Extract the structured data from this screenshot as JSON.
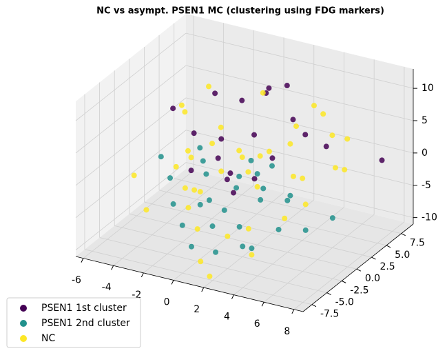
{
  "chart_data": {
    "type": "scatter3d",
    "title": "NC vs asympt. PSEN1 MC (clustering using FDG markers)",
    "xlim": [
      -6.5,
      8.6
    ],
    "ylim": [
      -9,
      9.5
    ],
    "zlim": [
      -11,
      13
    ],
    "xticks": [
      -6,
      -4,
      -2,
      0,
      2,
      4,
      6,
      8
    ],
    "yticks": [
      -7.5,
      {
        "value": -5,
        "label": "-5.0"
      },
      -2.5,
      {
        "value": 0,
        "label": "0.0"
      },
      2.5,
      {
        "value": 5,
        "label": "5.0"
      },
      7.5
    ],
    "zticks": [
      -10,
      -5,
      0,
      5,
      10
    ],
    "grid": true,
    "legend": "lower left",
    "series": [
      {
        "name": "PSEN1 1st cluster",
        "color": "#440154",
        "x": [
          -2,
          -1,
          0,
          1,
          2,
          3,
          -3,
          4,
          1,
          -1,
          2,
          0,
          3,
          -2,
          5,
          8.3,
          1,
          -4,
          2,
          0
        ],
        "y": [
          3,
          5,
          -1,
          4,
          6,
          0,
          2,
          3,
          -2,
          1,
          5,
          7,
          -3,
          -1,
          4,
          5,
          2,
          1,
          -4,
          0
        ],
        "z": [
          8,
          6,
          5,
          9,
          4,
          3,
          2,
          5,
          1,
          0,
          10,
          7,
          2,
          -1,
          3,
          2,
          4,
          6,
          0,
          -2
        ]
      },
      {
        "name": "PSEN1 2nd cluster",
        "color": "#21918c",
        "x": [
          -3,
          -2,
          -1,
          0,
          1,
          2,
          3,
          4,
          5,
          -2,
          0,
          1,
          3,
          4,
          2,
          -1,
          0,
          1,
          2,
          6,
          7,
          -3,
          -4,
          0,
          2,
          1,
          3,
          -1
        ],
        "y": [
          -2,
          -4,
          -1,
          -3,
          -5,
          0,
          -2,
          -6,
          -4,
          1,
          2,
          -1,
          3,
          0,
          -7,
          -5,
          4,
          -3,
          1,
          -2,
          0,
          3,
          -1,
          -6,
          -3,
          5,
          -5,
          -2
        ],
        "z": [
          -2,
          -4,
          -1,
          -3,
          -5,
          0,
          -2,
          -6,
          -4,
          -1,
          -3,
          -2,
          -5,
          -3,
          -7,
          -6,
          -2,
          -4,
          -3,
          -5,
          -4,
          -1,
          0,
          -8,
          -6,
          -3,
          -7,
          -5
        ]
      },
      {
        "name": "NC",
        "color": "#fde725",
        "x": [
          -5,
          -4,
          -3,
          -2,
          -1,
          0,
          1,
          2,
          3,
          4,
          5,
          6,
          -5,
          -3,
          -1,
          1,
          3,
          5,
          7,
          -4,
          -2,
          0,
          2,
          4,
          6,
          -3,
          -1,
          1,
          3,
          5,
          0,
          2,
          -2,
          4,
          1,
          -1,
          3,
          6,
          0,
          2
        ],
        "y": [
          5,
          3,
          1,
          -1,
          -3,
          -5,
          -7,
          2,
          4,
          6,
          0,
          -2,
          -3,
          -6,
          0,
          3,
          -4,
          5,
          2,
          7,
          -2,
          6,
          -8,
          1,
          3,
          -1,
          -4,
          0,
          7,
          -3,
          2,
          -5,
          4,
          -6,
          1,
          -2,
          3,
          5,
          -1,
          0
        ],
        "z": [
          3,
          4,
          0,
          1,
          -2,
          -6,
          -9,
          2,
          5,
          6,
          1,
          -1,
          -2,
          -4,
          3,
          0,
          -5,
          4,
          2,
          5,
          -3,
          7,
          -10,
          0,
          1,
          -1,
          -4,
          2,
          6,
          -3,
          1,
          -6,
          2,
          -7,
          -1,
          -3,
          3,
          4,
          0,
          -2
        ]
      }
    ]
  }
}
